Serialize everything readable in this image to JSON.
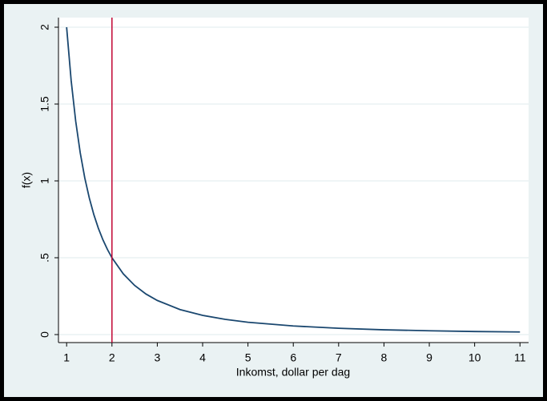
{
  "chart_data": {
    "type": "line",
    "x_label": "Inkomst, dollar per dag",
    "y_label": "f(x)",
    "x": [
      1,
      1.1,
      1.2,
      1.3,
      1.4,
      1.5,
      1.6,
      1.7,
      1.8,
      1.9,
      2,
      2.25,
      2.5,
      2.75,
      3,
      3.5,
      4,
      4.5,
      5,
      6,
      7,
      8,
      9,
      10,
      11
    ],
    "values": [
      2,
      1.653,
      1.389,
      1.183,
      1.02,
      0.889,
      0.781,
      0.692,
      0.617,
      0.554,
      0.5,
      0.395,
      0.32,
      0.264,
      0.222,
      0.163,
      0.125,
      0.099,
      0.08,
      0.056,
      0.041,
      0.031,
      0.025,
      0.02,
      0.017
    ],
    "color": "#1a476f",
    "reference_line": {
      "x": 2,
      "color": "#c10534"
    },
    "xlim": [
      0.82,
      11.19
    ],
    "ylim": [
      -0.052,
      2.0625
    ],
    "xticks": [
      1,
      2,
      3,
      4,
      5,
      6,
      7,
      8,
      9,
      10,
      11
    ],
    "yticks": [
      0,
      {
        "value": 0.5,
        "label": ".5"
      },
      1,
      1.5,
      2
    ],
    "grid": true
  }
}
